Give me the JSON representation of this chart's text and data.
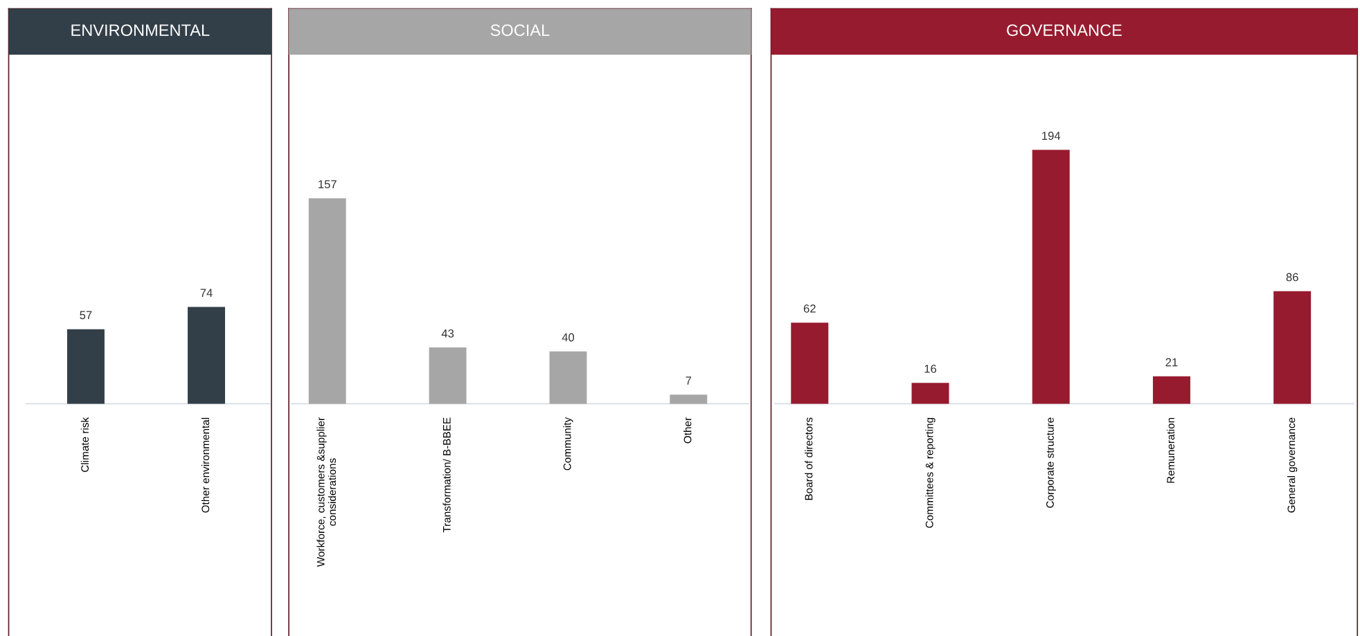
{
  "chart_data": [
    {
      "type": "bar",
      "title": "ENVIRONMENTAL",
      "categories": [
        "Climate risk",
        "Other environmental"
      ],
      "values": [
        57,
        74
      ],
      "color": "#333f48",
      "data_labels": true
    },
    {
      "type": "bar",
      "title": "SOCIAL",
      "categories": [
        "Workforce, customers &supplier\nconsiderations",
        "Transformation/ B-BBEE",
        "Community",
        "Other"
      ],
      "values": [
        157,
        43,
        40,
        7
      ],
      "color": "#a6a6a6",
      "data_labels": true
    },
    {
      "type": "bar",
      "title": "GOVERNANCE",
      "categories": [
        "Board of directors",
        "Committees & reporting",
        "Corporate structure",
        "Remuneration",
        "General governance"
      ],
      "values": [
        62,
        16,
        194,
        21,
        86
      ],
      "color": "#971b2f",
      "data_labels": true
    }
  ]
}
